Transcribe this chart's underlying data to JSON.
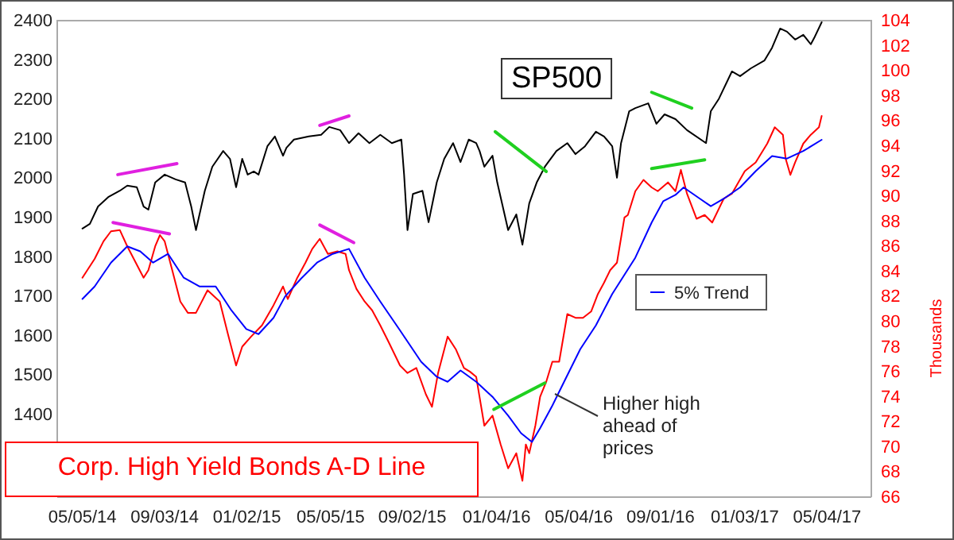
{
  "chart_data": {
    "type": "line",
    "title": "Corp. High Yield Bonds A-D Line",
    "y2label": "Thousands",
    "annotations": [
      "Higher high ahead of prices"
    ],
    "xlim": [
      "2014-03-29",
      "2017-07-08"
    ],
    "xticks": [
      {
        "value": "2014-05-05",
        "label": "05/05/14"
      },
      {
        "value": "2014-09-03",
        "label": "09/03/14"
      },
      {
        "value": "2015-01-02",
        "label": "01/02/15"
      },
      {
        "value": "2015-05-05",
        "label": "05/05/15"
      },
      {
        "value": "2015-09-02",
        "label": "09/02/15"
      },
      {
        "value": "2016-01-04",
        "label": "01/04/16"
      },
      {
        "value": "2016-05-04",
        "label": "05/04/16"
      },
      {
        "value": "2016-09-01",
        "label": "09/01/16"
      },
      {
        "value": "2017-01-03",
        "label": "01/03/17"
      },
      {
        "value": "2017-05-04",
        "label": "05/04/17"
      }
    ],
    "ylim": [
      1190,
      2400
    ],
    "yticks": [
      1400,
      1500,
      1600,
      1700,
      1800,
      1900,
      2000,
      2100,
      2200,
      2300,
      2400
    ],
    "y2lim": [
      66,
      104
    ],
    "y2ticks": [
      66,
      68,
      70,
      72,
      74,
      76,
      78,
      80,
      82,
      84,
      86,
      88,
      90,
      92,
      94,
      96,
      98,
      100,
      102,
      104
    ],
    "grid": false,
    "legend": "right",
    "marker": "none",
    "line_style": "solid",
    "series": [
      {
        "name": "SP500",
        "color": "#000000",
        "axis": "y",
        "x": [
          "2014-05-05",
          "2014-05-16",
          "2014-05-28",
          "2014-06-12",
          "2014-06-29",
          "2014-07-10",
          "2014-07-24",
          "2014-08-03",
          "2014-08-10",
          "2014-08-20",
          "2014-09-03",
          "2014-09-19",
          "2014-10-03",
          "2014-10-12",
          "2014-10-19",
          "2014-11-01",
          "2014-11-12",
          "2014-11-28",
          "2014-12-08",
          "2014-12-17",
          "2014-12-26",
          "2015-01-03",
          "2015-01-12",
          "2015-01-19",
          "2015-02-01",
          "2015-02-12",
          "2015-02-24",
          "2015-03-01",
          "2015-03-12",
          "2015-04-03",
          "2015-04-21",
          "2015-05-03",
          "2015-05-19",
          "2015-06-01",
          "2015-06-15",
          "2015-07-01",
          "2015-07-17",
          "2015-08-03",
          "2015-08-17",
          "2015-08-21",
          "2015-08-26",
          "2015-09-03",
          "2015-09-17",
          "2015-09-26",
          "2015-10-08",
          "2015-10-19",
          "2015-11-01",
          "2015-11-12",
          "2015-11-24",
          "2015-12-05",
          "2015-12-10",
          "2015-12-17",
          "2015-12-29",
          "2016-01-05",
          "2016-01-12",
          "2016-01-21",
          "2016-02-02",
          "2016-02-11",
          "2016-02-21",
          "2016-03-03",
          "2016-03-15",
          "2016-04-01",
          "2016-04-17",
          "2016-04-29",
          "2016-05-13",
          "2016-05-29",
          "2016-06-10",
          "2016-06-22",
          "2016-06-29",
          "2016-07-05",
          "2016-07-17",
          "2016-07-26",
          "2016-08-14",
          "2016-08-26",
          "2016-09-07",
          "2016-09-23",
          "2016-10-10",
          "2016-11-07",
          "2016-11-14",
          "2016-11-26",
          "2016-12-15",
          "2016-12-27",
          "2017-01-12",
          "2017-02-01",
          "2017-02-12",
          "2017-02-24",
          "2017-03-06",
          "2017-03-18",
          "2017-03-30",
          "2017-04-10",
          "2017-04-15",
          "2017-04-26"
        ],
        "values": [
          1872,
          1884,
          1928,
          1952,
          1968,
          1981,
          1977,
          1928,
          1920,
          1989,
          2009,
          1997,
          1989,
          1928,
          1868,
          1968,
          2029,
          2069,
          2049,
          1977,
          2049,
          2009,
          2017,
          2009,
          2081,
          2106,
          2057,
          2077,
          2098,
          2106,
          2110,
          2130,
          2122,
          2089,
          2114,
          2089,
          2110,
          2089,
          2098,
          2009,
          1868,
          1960,
          1968,
          1888,
          1989,
          2049,
          2089,
          2041,
          2098,
          2089,
          2069,
          2029,
          2057,
          1989,
          1936,
          1868,
          1908,
          1831,
          1936,
          1989,
          2029,
          2069,
          2089,
          2061,
          2081,
          2118,
          2106,
          2081,
          2001,
          2089,
          2170,
          2178,
          2190,
          2138,
          2162,
          2150,
          2122,
          2089,
          2170,
          2202,
          2271,
          2259,
          2279,
          2299,
          2331,
          2380,
          2372,
          2352,
          2364,
          2340,
          2356,
          2396
        ]
      },
      {
        "color": "#ff0000",
        "axis": "y2",
        "x": [
          "2014-05-05",
          "2014-05-23",
          "2014-06-05",
          "2014-06-16",
          "2014-06-29",
          "2014-07-10",
          "2014-08-03",
          "2014-08-10",
          "2014-08-20",
          "2014-08-27",
          "2014-09-03",
          "2014-09-15",
          "2014-09-26",
          "2014-10-07",
          "2014-10-19",
          "2014-11-05",
          "2014-11-23",
          "2014-12-05",
          "2014-12-17",
          "2014-12-26",
          "2015-01-08",
          "2015-01-24",
          "2015-02-10",
          "2015-02-24",
          "2015-03-03",
          "2015-03-17",
          "2015-03-29",
          "2015-04-08",
          "2015-04-19",
          "2015-05-01",
          "2015-05-15",
          "2015-05-27",
          "2015-06-01",
          "2015-06-12",
          "2015-06-24",
          "2015-07-05",
          "2015-07-17",
          "2015-07-29",
          "2015-08-15",
          "2015-08-26",
          "2015-09-08",
          "2015-09-22",
          "2015-10-01",
          "2015-10-10",
          "2015-10-24",
          "2015-11-05",
          "2015-11-17",
          "2015-11-26",
          "2015-12-05",
          "2015-12-17",
          "2015-12-29",
          "2016-01-10",
          "2016-01-21",
          "2016-02-02",
          "2016-02-11",
          "2016-02-16",
          "2016-02-21",
          "2016-03-01",
          "2016-03-08",
          "2016-03-17",
          "2016-03-26",
          "2016-04-05",
          "2016-04-17",
          "2016-04-29",
          "2016-05-10",
          "2016-05-22",
          "2016-06-01",
          "2016-06-10",
          "2016-06-19",
          "2016-06-29",
          "2016-07-10",
          "2016-07-15",
          "2016-07-26",
          "2016-08-07",
          "2016-08-19",
          "2016-08-28",
          "2016-09-12",
          "2016-09-23",
          "2016-10-01",
          "2016-10-10",
          "2016-10-24",
          "2016-11-05",
          "2016-11-16",
          "2016-12-03",
          "2016-12-15",
          "2017-01-03",
          "2017-01-19",
          "2017-02-05",
          "2017-02-16",
          "2017-02-28",
          "2017-03-04",
          "2017-03-11",
          "2017-03-18",
          "2017-03-30",
          "2017-04-10",
          "2017-04-22",
          "2017-04-26"
        ],
        "values": [
          83.5,
          85.0,
          86.4,
          87.2,
          87.3,
          86.0,
          83.5,
          84.1,
          86.0,
          86.9,
          86.4,
          83.9,
          81.6,
          80.7,
          80.7,
          82.5,
          81.6,
          79.0,
          76.5,
          78.0,
          78.8,
          79.7,
          81.3,
          82.8,
          81.8,
          83.5,
          84.7,
          85.8,
          86.6,
          85.4,
          85.6,
          85.4,
          84.1,
          82.6,
          81.6,
          80.9,
          79.7,
          78.4,
          76.5,
          75.9,
          76.3,
          74.2,
          73.2,
          75.9,
          78.8,
          77.8,
          76.3,
          76.0,
          75.6,
          71.7,
          72.5,
          70.2,
          68.3,
          69.5,
          67.3,
          70.2,
          69.5,
          71.7,
          74.0,
          75.2,
          76.8,
          76.8,
          80.6,
          80.3,
          80.3,
          80.8,
          82.2,
          83.1,
          84.1,
          84.7,
          88.3,
          88.5,
          90.4,
          91.3,
          90.7,
          90.4,
          91.1,
          90.4,
          92.1,
          90.2,
          88.2,
          88.5,
          87.9,
          89.8,
          90.2,
          92.0,
          92.7,
          94.2,
          95.5,
          94.9,
          93.0,
          91.7,
          92.7,
          94.2,
          94.9,
          95.5,
          96.4
        ]
      },
      {
        "name": "5% Trend",
        "color": "#0000ff",
        "axis": "y2",
        "x": [
          "2014-05-05",
          "2014-05-23",
          "2014-06-16",
          "2014-07-10",
          "2014-07-29",
          "2014-08-17",
          "2014-09-08",
          "2014-10-01",
          "2014-10-24",
          "2014-11-17",
          "2014-12-10",
          "2015-01-01",
          "2015-01-19",
          "2015-02-10",
          "2015-02-27",
          "2015-03-22",
          "2015-04-15",
          "2015-05-08",
          "2015-06-01",
          "2015-06-24",
          "2015-07-17",
          "2015-08-15",
          "2015-09-15",
          "2015-10-08",
          "2015-10-24",
          "2015-11-12",
          "2015-12-05",
          "2015-12-29",
          "2016-01-21",
          "2016-02-09",
          "2016-02-25",
          "2016-03-08",
          "2016-03-26",
          "2016-04-15",
          "2016-05-06",
          "2016-05-29",
          "2016-06-22",
          "2016-07-26",
          "2016-08-19",
          "2016-09-05",
          "2016-09-23",
          "2016-10-05",
          "2016-10-29",
          "2016-11-14",
          "2016-12-03",
          "2016-12-27",
          "2017-01-19",
          "2017-02-12",
          "2017-03-06",
          "2017-03-30",
          "2017-04-26"
        ],
        "values": [
          81.8,
          82.8,
          84.7,
          86.0,
          85.6,
          84.7,
          85.4,
          83.5,
          82.8,
          82.8,
          80.9,
          79.4,
          79.0,
          80.3,
          82.0,
          83.4,
          84.7,
          85.4,
          85.8,
          83.5,
          81.6,
          79.3,
          76.8,
          75.6,
          75.2,
          76.1,
          75.2,
          74.0,
          72.5,
          71.1,
          70.4,
          71.5,
          73.3,
          75.5,
          77.8,
          79.7,
          82.2,
          85.1,
          87.9,
          89.6,
          90.1,
          90.7,
          89.8,
          89.2,
          89.8,
          90.7,
          92.0,
          93.2,
          93.0,
          93.6,
          94.5
        ]
      },
      {
        "color": "#e020e0",
        "axis": "y",
        "x": [
          "2014-06-26",
          "2014-09-21"
        ],
        "values": [
          2009,
          2037
        ]
      },
      {
        "color": "#e020e0",
        "axis": "y2",
        "x": [
          "2014-06-19",
          "2014-09-10"
        ],
        "values": [
          87.9,
          87.0
        ]
      },
      {
        "color": "#e020e0",
        "axis": "y",
        "x": [
          "2015-04-19",
          "2015-06-01"
        ],
        "values": [
          2134,
          2158
        ]
      },
      {
        "color": "#e020e0",
        "axis": "y2",
        "x": [
          "2015-04-19",
          "2015-06-08"
        ],
        "values": [
          87.7,
          86.3
        ]
      },
      {
        "color": "#20d020",
        "axis": "y",
        "x": [
          "2016-01-02",
          "2016-03-17"
        ],
        "values": [
          2118,
          2017
        ]
      },
      {
        "color": "#20d020",
        "axis": "y2",
        "x": [
          "2015-12-31",
          "2016-03-15"
        ],
        "values": [
          73.0,
          75.1
        ]
      },
      {
        "color": "#20d020",
        "axis": "y",
        "x": [
          "2016-08-19",
          "2016-10-17"
        ],
        "values": [
          2218,
          2178
        ]
      },
      {
        "color": "#20d020",
        "axis": "y2",
        "x": [
          "2016-08-19",
          "2016-11-05"
        ],
        "values": [
          92.2,
          92.9
        ]
      }
    ]
  }
}
